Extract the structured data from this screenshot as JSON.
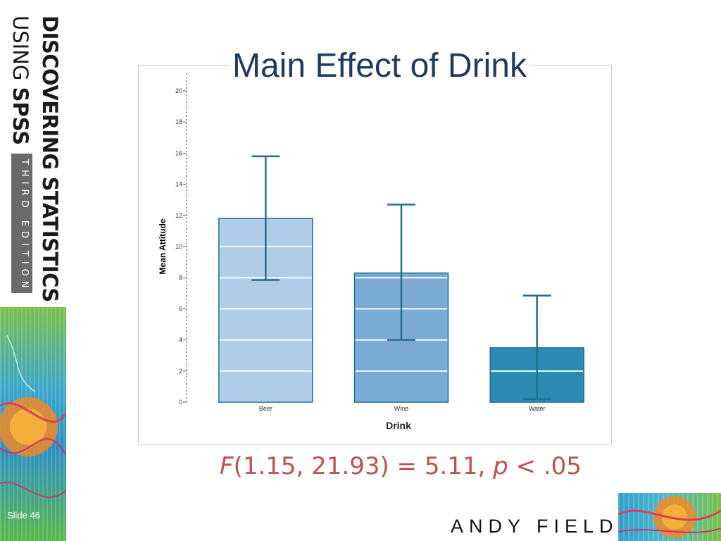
{
  "banner": {
    "title_line1": "DISCOVERING STATISTICS",
    "title_line2_prefix": "USING",
    "title_line2_bold": "SPSS",
    "edition": "THIRD EDITION"
  },
  "slide": {
    "title": "Main Effect of Drink",
    "number": "Slide 46",
    "author": "ANDY FIELD"
  },
  "stat": {
    "f_symbol": "F",
    "f_args": "(1.15, 21.93) = 5.11, ",
    "p_symbol": "p",
    "p_text": " < .05"
  },
  "colors": {
    "title": "#1f3a5f",
    "stat": "#c0504d",
    "bar_beer": "#aecde9",
    "bar_wine": "#7baad6",
    "bar_water": "#2a8cb3",
    "bar_edge": "#1a6f8e",
    "error_bar": "#1f6f8c"
  },
  "chart_data": {
    "type": "bar",
    "categories": [
      "Beer",
      "Wine",
      "Water"
    ],
    "values": [
      11.8,
      8.3,
      3.5
    ],
    "error_bars": [
      {
        "low": 7.85,
        "high": 15.8
      },
      {
        "low": 4.0,
        "high": 12.7
      },
      {
        "low": 0.2,
        "high": 6.85
      }
    ],
    "xlabel": "Drink",
    "ylabel": "Mean Attitude",
    "ylim": [
      0,
      20
    ],
    "yticks": [
      0,
      2,
      4,
      6,
      8,
      10,
      12,
      14,
      16,
      18,
      20
    ],
    "ytick_labels": [
      "0",
      "2",
      "4",
      "6",
      "8",
      "10",
      "12",
      "14",
      "16",
      "18",
      "20"
    ],
    "grid": "white horizontal lines inside bars every 2 units"
  }
}
